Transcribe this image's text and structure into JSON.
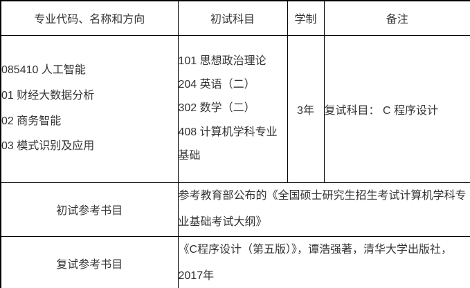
{
  "table": {
    "headers": [
      "专业代码、名称和方向",
      "初试科目",
      "学制",
      "备注"
    ],
    "program": {
      "lines": [
        "085410 人工智能",
        "01 财经大数据分析",
        "02 商务智能",
        "03 模式识别及应用"
      ]
    },
    "exam_subjects": {
      "lines": [
        "101 思想政治理论",
        "204 英语（二）",
        "302 数学（二）",
        "408 计算机学科专业基础"
      ]
    },
    "duration": "3年",
    "remarks": "复试科目： C 程序设计",
    "reference_rows": [
      {
        "label": "初试参考书目",
        "content": "参考教育部公布的《全国硕士研究生招生考试计算机学科专业基础考试大纲》"
      },
      {
        "label": "复试参考书目",
        "content": "《C程序设计（第五版）》，谭浩强著，清华大学出版社，2017年"
      }
    ]
  }
}
